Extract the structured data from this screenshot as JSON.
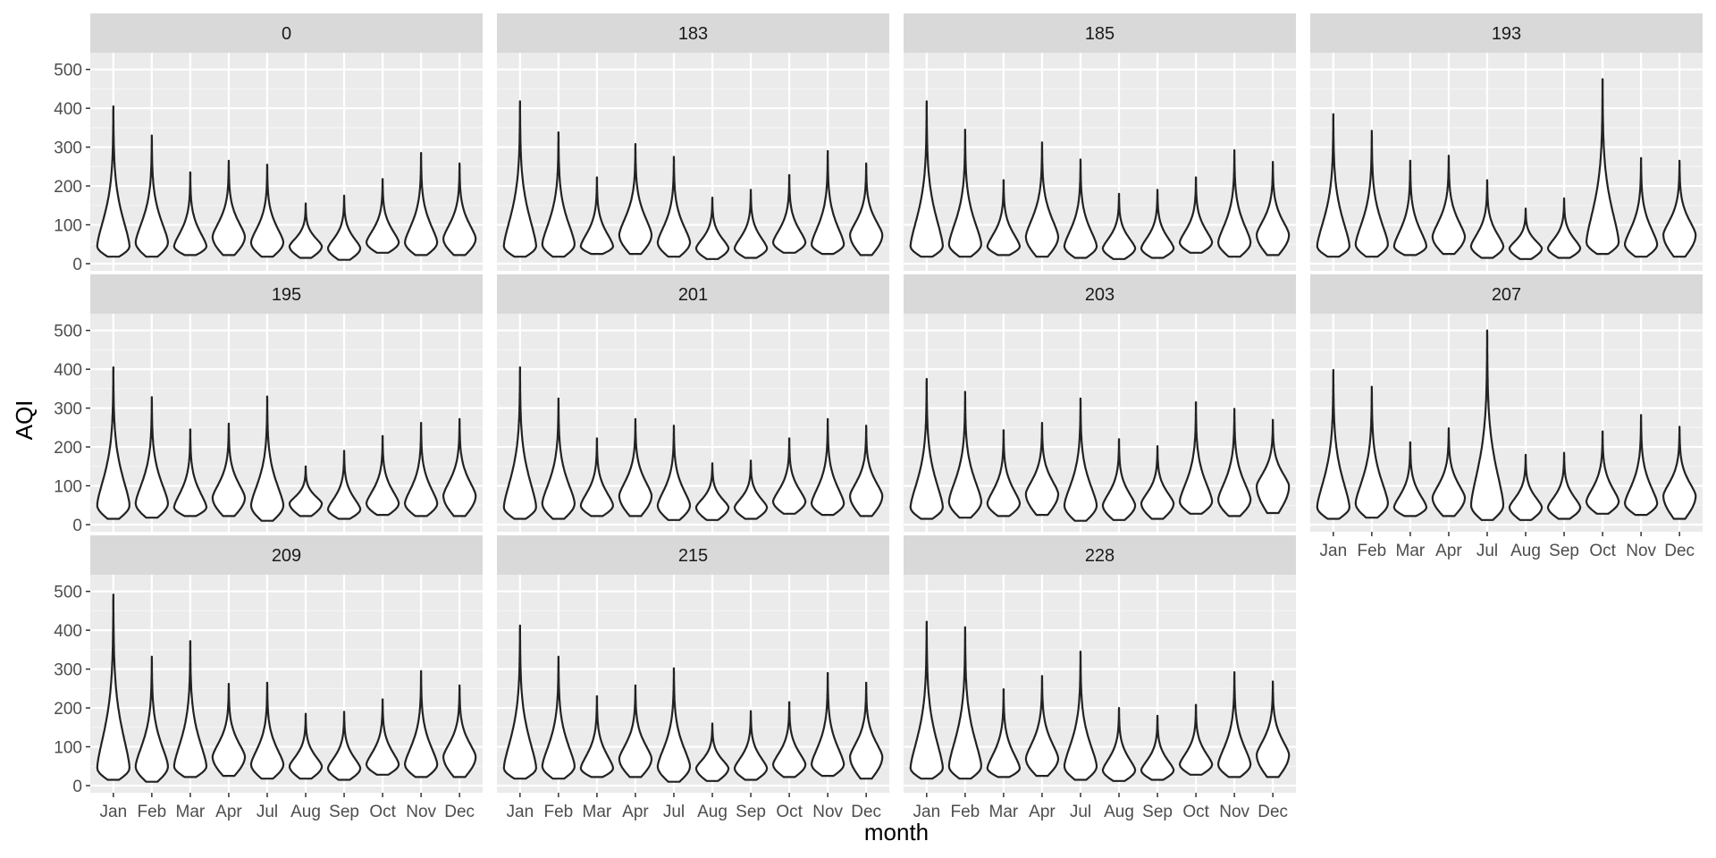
{
  "chart_data": {
    "type": "violin",
    "facet_variable_values": [
      "0",
      "183",
      "185",
      "193",
      "195",
      "201",
      "203",
      "207",
      "209",
      "215",
      "228"
    ],
    "xlabel": "month",
    "ylabel": "AQI",
    "categories": [
      "Jan",
      "Feb",
      "Mar",
      "Apr",
      "Jul",
      "Aug",
      "Sep",
      "Oct",
      "Nov",
      "Dec"
    ],
    "ylim": [
      0,
      520
    ],
    "yticks": [
      0,
      100,
      200,
      300,
      400,
      500
    ],
    "grid": true,
    "panels": [
      {
        "label": "0",
        "max": [
          405,
          330,
          235,
          265,
          255,
          155,
          175,
          218,
          285,
          258
        ],
        "min": [
          18,
          18,
          22,
          22,
          18,
          15,
          10,
          28,
          22,
          22
        ],
        "mode": [
          45,
          55,
          45,
          70,
          55,
          45,
          40,
          55,
          55,
          65
        ]
      },
      {
        "label": "183",
        "max": [
          418,
          338,
          222,
          308,
          275,
          170,
          190,
          228,
          290,
          258
        ],
        "min": [
          18,
          18,
          25,
          25,
          18,
          12,
          15,
          28,
          25,
          22
        ],
        "mode": [
          45,
          50,
          45,
          75,
          55,
          40,
          40,
          55,
          50,
          75
        ]
      },
      {
        "label": "185",
        "max": [
          418,
          345,
          215,
          312,
          268,
          180,
          190,
          222,
          292,
          262
        ],
        "min": [
          18,
          18,
          22,
          18,
          15,
          12,
          15,
          28,
          18,
          22
        ],
        "mode": [
          45,
          50,
          45,
          70,
          45,
          40,
          40,
          55,
          55,
          75
        ]
      },
      {
        "label": "193",
        "max": [
          385,
          342,
          265,
          278,
          215,
          142,
          168,
          475,
          272,
          265
        ],
        "min": [
          18,
          18,
          22,
          25,
          15,
          12,
          15,
          25,
          18,
          18
        ],
        "mode": [
          45,
          50,
          45,
          70,
          45,
          40,
          40,
          55,
          50,
          75
        ]
      },
      {
        "label": "195",
        "max": [
          405,
          328,
          245,
          260,
          330,
          150,
          190,
          228,
          262,
          272
        ],
        "min": [
          15,
          18,
          22,
          22,
          10,
          22,
          15,
          25,
          22,
          22
        ],
        "mode": [
          50,
          55,
          45,
          70,
          50,
          55,
          40,
          55,
          55,
          75
        ]
      },
      {
        "label": "201",
        "max": [
          405,
          325,
          222,
          272,
          255,
          158,
          165,
          222,
          272,
          255
        ],
        "min": [
          15,
          15,
          22,
          22,
          12,
          12,
          15,
          28,
          25,
          22
        ],
        "mode": [
          45,
          55,
          50,
          75,
          50,
          45,
          45,
          60,
          55,
          75
        ]
      },
      {
        "label": "203",
        "max": [
          375,
          342,
          243,
          262,
          325,
          220,
          202,
          315,
          298,
          270
        ],
        "min": [
          15,
          18,
          22,
          25,
          10,
          12,
          15,
          28,
          22,
          30
        ],
        "mode": [
          45,
          60,
          55,
          80,
          50,
          50,
          55,
          60,
          65,
          100
        ]
      },
      {
        "label": "207",
        "max": [
          398,
          355,
          212,
          248,
          500,
          180,
          185,
          240,
          282,
          252
        ],
        "min": [
          15,
          18,
          22,
          22,
          12,
          12,
          15,
          28,
          25,
          15
        ],
        "mode": [
          45,
          55,
          45,
          70,
          50,
          45,
          45,
          60,
          55,
          75
        ]
      },
      {
        "label": "209",
        "max": [
          492,
          332,
          372,
          262,
          265,
          185,
          190,
          222,
          295,
          258
        ],
        "min": [
          15,
          10,
          22,
          25,
          18,
          18,
          15,
          28,
          22,
          22
        ],
        "mode": [
          45,
          50,
          50,
          75,
          55,
          50,
          45,
          55,
          55,
          75
        ]
      },
      {
        "label": "215",
        "max": [
          412,
          332,
          230,
          258,
          302,
          160,
          192,
          215,
          290,
          265
        ],
        "min": [
          18,
          18,
          22,
          22,
          10,
          12,
          15,
          22,
          25,
          18
        ],
        "mode": [
          45,
          50,
          45,
          70,
          50,
          45,
          45,
          55,
          55,
          75
        ]
      },
      {
        "label": "228",
        "max": [
          422,
          408,
          248,
          282,
          345,
          200,
          180,
          208,
          292,
          268
        ],
        "min": [
          18,
          18,
          22,
          25,
          15,
          12,
          15,
          28,
          22,
          22
        ],
        "mode": [
          45,
          50,
          45,
          70,
          50,
          40,
          40,
          55,
          55,
          80
        ]
      }
    ]
  }
}
